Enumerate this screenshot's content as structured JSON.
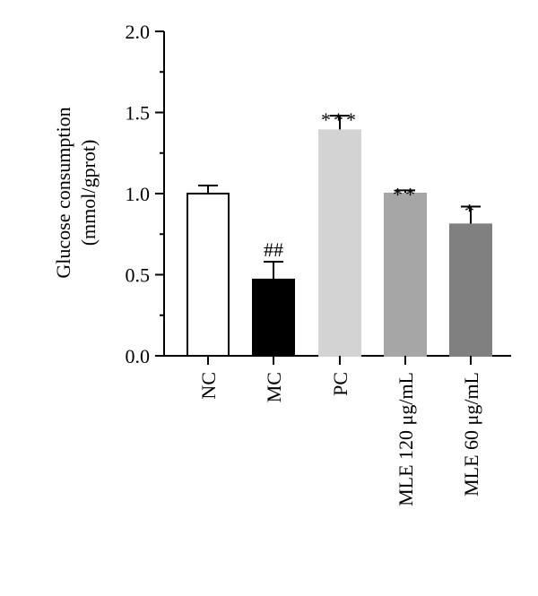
{
  "chart_data": {
    "type": "bar",
    "ylabel_line1": "Glucose consumption",
    "ylabel_line2": "(mmol/gprot)",
    "ylim": [
      0,
      2.0
    ],
    "yticks": [
      0.0,
      0.5,
      1.0,
      1.5,
      2.0
    ],
    "ytick_labels": [
      "0.0",
      "0.5",
      "1.0",
      "1.5",
      "2.0"
    ],
    "categories": [
      "NC",
      "MC",
      "PC",
      "MLE 120 μg/mL",
      "MLE 60 μg/mL"
    ],
    "values": [
      1.0,
      0.47,
      1.39,
      1.0,
      0.81
    ],
    "errors": [
      0.05,
      0.11,
      0.09,
      0.02,
      0.11
    ],
    "annotations": [
      "",
      "##",
      "***",
      "**",
      "*"
    ],
    "colors": [
      "#ffffff",
      "#000000",
      "#d3d3d3",
      "#a6a6a6",
      "#808080"
    ],
    "grid": false
  }
}
